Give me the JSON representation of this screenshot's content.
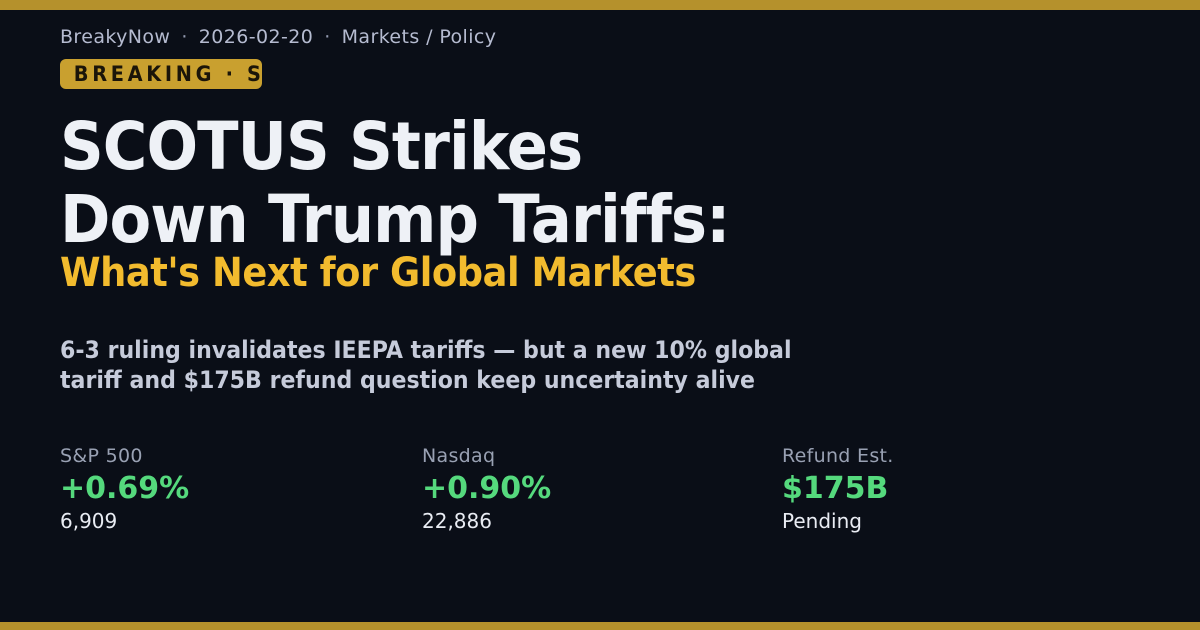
{
  "colors": {
    "bg": "#0a0e17",
    "gold_bar": "#b5912c",
    "gold_badge": "#c9a02f",
    "gold_text": "#f2bb2e",
    "green": "#55d97d"
  },
  "header": {
    "brand": "BreakyNow",
    "separator": "·",
    "date": "2026-02-20",
    "section": "Markets / Policy"
  },
  "badge": {
    "label": "BREAKING · S"
  },
  "headline": {
    "main": "SCOTUS Strikes\nDown Trump Tariffs:",
    "highlight": "What's Next for Global Markets"
  },
  "dek": "6-3 ruling invalidates IEEPA tariffs — but a new 10% global\ntariff and $175B refund question keep uncertainty alive",
  "stats": [
    {
      "label": "S&P 500",
      "value": "+0.69%",
      "sub": "6,909"
    },
    {
      "label": "Nasdaq",
      "value": "+0.90%",
      "sub": "22,886"
    },
    {
      "label": "Refund Est.",
      "value": "$175B",
      "sub": "Pending"
    }
  ]
}
